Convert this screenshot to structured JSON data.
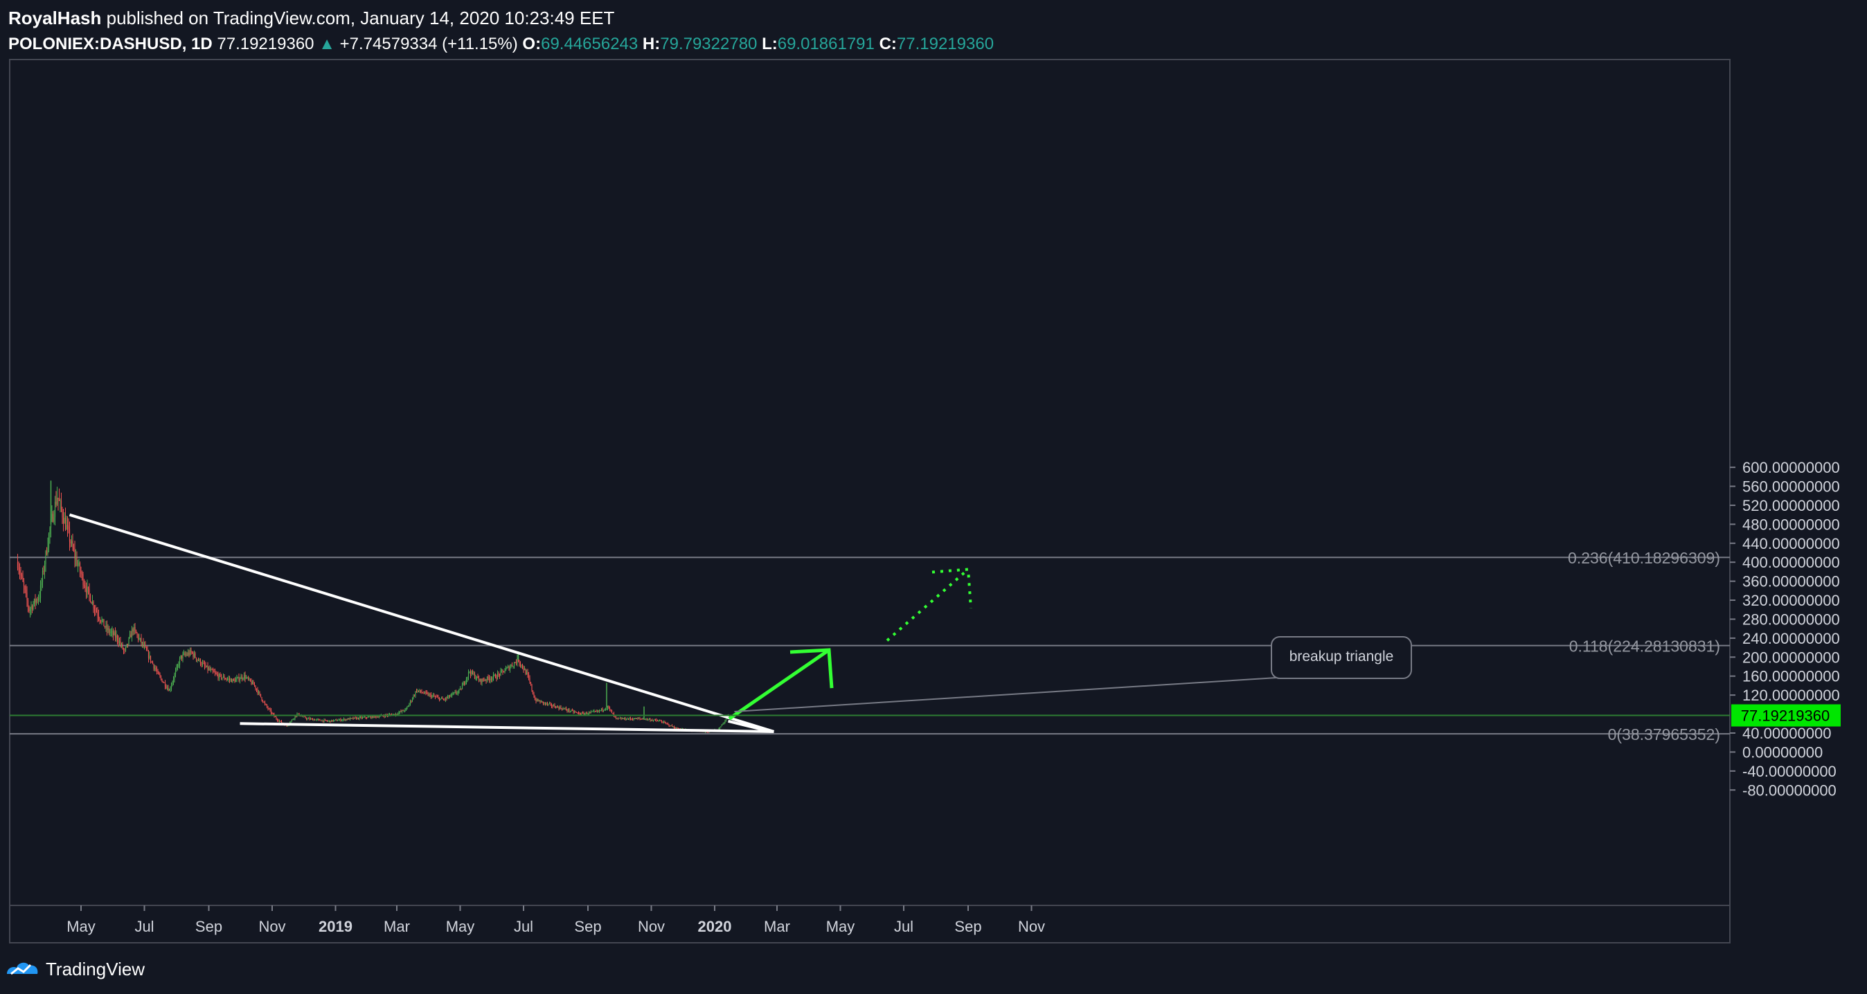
{
  "header": {
    "author": "RoyalHash",
    "published_text": "published on TradingView.com, January 14, 2020 10:23:49 EET",
    "symbol": "POLONIEX:DASHUSD, 1D",
    "last": "77.19219360",
    "change": "+7.74579334 (+11.15%)",
    "o_label": "O:",
    "o": "69.44656243",
    "h_label": "H:",
    "h": "79.79322780",
    "l_label": "L:",
    "l": "69.01861791",
    "c_label": "C:",
    "c": "77.19219360"
  },
  "footer": {
    "brand": "TradingView",
    "logo_icon": "tradingview-logo-icon"
  },
  "colors": {
    "background": "#131722",
    "up": "#26a69a",
    "candle_up": "#4caf50",
    "candle_down": "#ef5350",
    "arrow": "#33ff33",
    "price_tag": "#00e600",
    "fib_line": "#787b86"
  },
  "chart_data": {
    "type": "candlestick",
    "y_axis_ticks": [
      "600.00000000",
      "560.00000000",
      "520.00000000",
      "480.00000000",
      "440.00000000",
      "400.00000000",
      "360.00000000",
      "320.00000000",
      "280.00000000",
      "240.00000000",
      "200.00000000",
      "160.00000000",
      "120.00000000",
      "40.00000000",
      "0.00000000",
      "-40.00000000",
      "-80.00000000"
    ],
    "ylim": [
      -105,
      608
    ],
    "x_axis_ticks": [
      "May",
      "Jul",
      "Sep",
      "Nov",
      "2019",
      "Mar",
      "May",
      "Jul",
      "Sep",
      "Nov",
      "2020",
      "Mar",
      "May",
      "Jul",
      "Sep",
      "Nov"
    ],
    "x_axis_bold": [
      "2019",
      "2020"
    ],
    "last_price_label": "77.19219360",
    "last_price": 77.19,
    "fib_levels": [
      {
        "label": "0.236(410.18296309)",
        "value": 410.18
      },
      {
        "label": "0.118(224.28130831)",
        "value": 224.28
      },
      {
        "label": "0(38.37965352)",
        "value": 38.38
      }
    ],
    "annotation": "breakup triangle",
    "price_path": [
      [
        "2018-03-01",
        400
      ],
      [
        "2018-03-12",
        300
      ],
      [
        "2018-03-22",
        330
      ],
      [
        "2018-04-01",
        470
      ],
      [
        "2018-04-08",
        540
      ],
      [
        "2018-04-16",
        480
      ],
      [
        "2018-04-24",
        420
      ],
      [
        "2018-05-05",
        350
      ],
      [
        "2018-05-15",
        300
      ],
      [
        "2018-05-25",
        260
      ],
      [
        "2018-06-05",
        240
      ],
      [
        "2018-06-12",
        210
      ],
      [
        "2018-06-20",
        260
      ],
      [
        "2018-07-01",
        220
      ],
      [
        "2018-07-15",
        160
      ],
      [
        "2018-07-25",
        130
      ],
      [
        "2018-08-05",
        200
      ],
      [
        "2018-08-15",
        210
      ],
      [
        "2018-08-28",
        180
      ],
      [
        "2018-09-10",
        160
      ],
      [
        "2018-09-25",
        150
      ],
      [
        "2018-10-05",
        160
      ],
      [
        "2018-10-15",
        140
      ],
      [
        "2018-10-25",
        100
      ],
      [
        "2018-11-05",
        70
      ],
      [
        "2018-11-15",
        55
      ],
      [
        "2018-11-25",
        80
      ],
      [
        "2018-12-05",
        70
      ],
      [
        "2018-12-25",
        65
      ],
      [
        "2019-01-15",
        70
      ],
      [
        "2019-02-10",
        75
      ],
      [
        "2019-02-28",
        80
      ],
      [
        "2019-03-10",
        90
      ],
      [
        "2019-03-20",
        130
      ],
      [
        "2019-04-01",
        120
      ],
      [
        "2019-04-15",
        110
      ],
      [
        "2019-05-01",
        130
      ],
      [
        "2019-05-10",
        170
      ],
      [
        "2019-05-20",
        150
      ],
      [
        "2019-06-05",
        160
      ],
      [
        "2019-06-18",
        180
      ],
      [
        "2019-06-26",
        195
      ],
      [
        "2019-07-05",
        160
      ],
      [
        "2019-07-12",
        110
      ],
      [
        "2019-07-25",
        100
      ],
      [
        "2019-08-10",
        90
      ],
      [
        "2019-08-25",
        80
      ],
      [
        "2019-09-10",
        85
      ],
      [
        "2019-09-20",
        95
      ],
      [
        "2019-09-28",
        70
      ],
      [
        "2019-10-10",
        70
      ],
      [
        "2019-10-25",
        70
      ],
      [
        "2019-11-10",
        65
      ],
      [
        "2019-11-25",
        50
      ],
      [
        "2019-12-10",
        45
      ],
      [
        "2019-12-25",
        42
      ],
      [
        "2020-01-05",
        48
      ],
      [
        "2020-01-14",
        77
      ]
    ],
    "trend_lines": [
      {
        "from": [
          "2018-04-20",
          500
        ],
        "to": [
          "2020-02-27",
          43
        ]
      },
      {
        "from": [
          "2018-10-01",
          60
        ],
        "to": [
          "2020-02-27",
          43
        ]
      },
      {
        "from": [
          "2020-01-14",
          65
        ],
        "to": [
          "2020-02-24",
          43
        ]
      }
    ],
    "arrows": [
      {
        "style": "solid",
        "from": [
          "2020-01-15",
          70
        ],
        "to": [
          "2020-04-20",
          215
        ]
      },
      {
        "style": "dotted",
        "from": [
          "2020-06-15",
          235
        ],
        "to": [
          "2020-09-01",
          385
        ]
      }
    ]
  }
}
